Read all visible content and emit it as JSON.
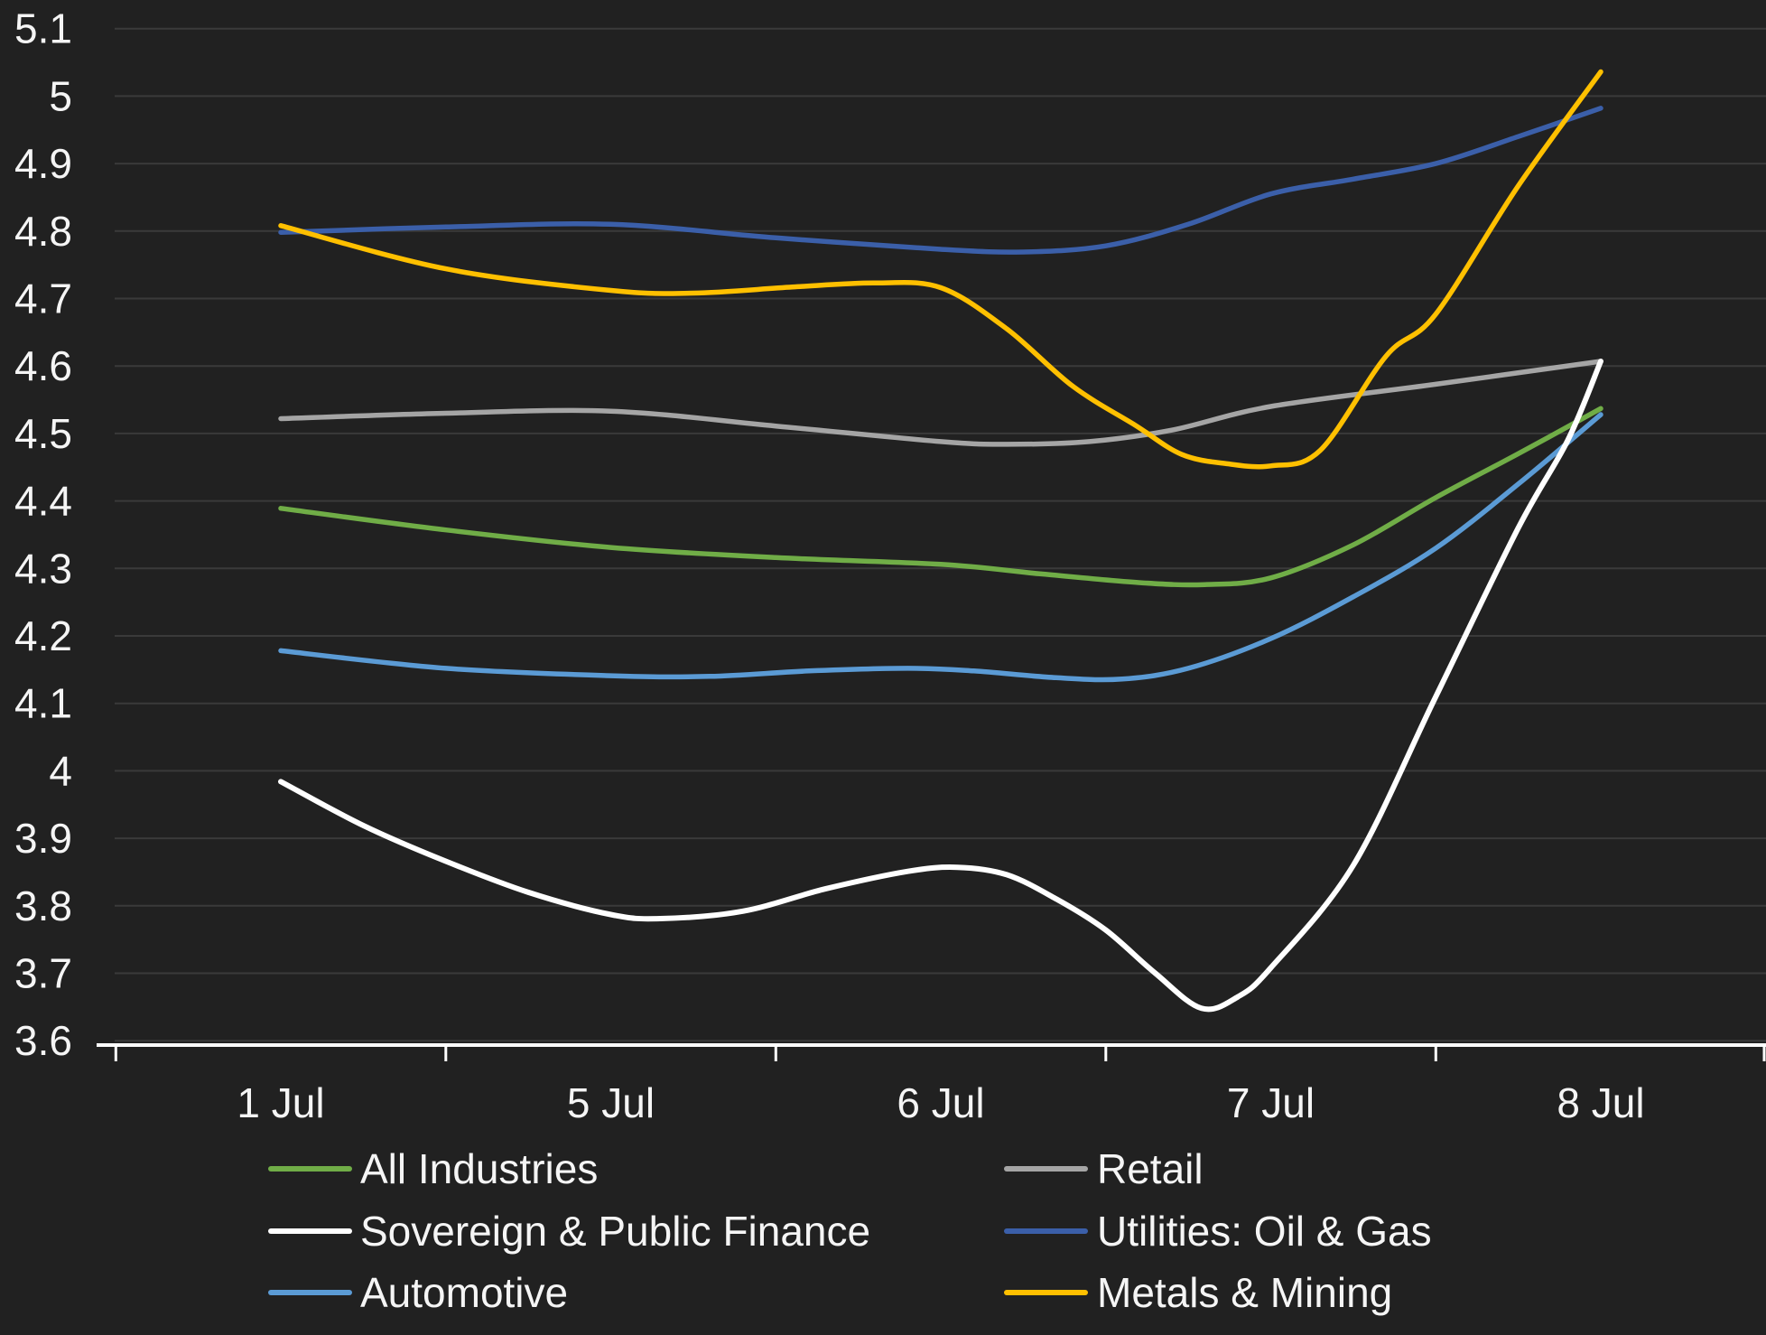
{
  "canvas": {
    "background": "#212121",
    "grid_color": "#3a3a3a",
    "axis_color": "#ffffff",
    "text_color": "#f5f5f5"
  },
  "chart_data": {
    "type": "line",
    "title": "",
    "xlabel": "",
    "ylabel": "",
    "categories": [
      "1 Jul",
      "5 Jul",
      "6 Jul",
      "7 Jul",
      "8 Jul"
    ],
    "ylim": [
      3.6,
      5.1
    ],
    "ytick_step": 0.1,
    "ytick_labels": [
      "5.1",
      "5",
      "4.9",
      "4.8",
      "4.7",
      "4.6",
      "4.5",
      "4.4",
      "4.3",
      "4.2",
      "4.1",
      "4",
      "3.9",
      "3.8",
      "3.7",
      "3.6"
    ],
    "grid": "horizontal",
    "legend_position": "bottom",
    "series": [
      {
        "name": "All Industries",
        "color": "#70ad47",
        "values": [
          4.39,
          4.33,
          4.31,
          4.29,
          4.54
        ],
        "shape_points": [
          [
            0,
            4.389
          ],
          [
            0.5,
            4.357
          ],
          [
            1,
            4.331
          ],
          [
            1.5,
            4.316
          ],
          [
            2,
            4.306
          ],
          [
            2.3,
            4.292
          ],
          [
            2.6,
            4.279
          ],
          [
            2.8,
            4.276
          ],
          [
            3,
            4.286
          ],
          [
            3.25,
            4.335
          ],
          [
            3.5,
            4.405
          ],
          [
            3.75,
            4.47
          ],
          [
            4,
            4.537
          ]
        ]
      },
      {
        "name": "Sovereign & Public Finance",
        "color": "#ffffff",
        "values": [
          3.98,
          3.79,
          3.86,
          3.71,
          4.61
        ],
        "shape_points": [
          [
            0,
            3.984
          ],
          [
            0.25,
            3.919
          ],
          [
            0.5,
            3.866
          ],
          [
            0.75,
            3.82
          ],
          [
            1,
            3.787
          ],
          [
            1.15,
            3.781
          ],
          [
            1.4,
            3.792
          ],
          [
            1.65,
            3.825
          ],
          [
            1.9,
            3.851
          ],
          [
            2.05,
            3.857
          ],
          [
            2.2,
            3.846
          ],
          [
            2.35,
            3.81
          ],
          [
            2.5,
            3.764
          ],
          [
            2.65,
            3.7
          ],
          [
            2.79,
            3.648
          ],
          [
            2.9,
            3.665
          ],
          [
            3,
            3.708
          ],
          [
            3.25,
            3.86
          ],
          [
            3.5,
            4.11
          ],
          [
            3.75,
            4.36
          ],
          [
            3.9,
            4.49
          ],
          [
            4,
            4.607
          ]
        ]
      },
      {
        "name": "Automotive",
        "color": "#5b9bd5",
        "values": [
          4.18,
          4.14,
          4.15,
          4.2,
          4.53
        ],
        "shape_points": [
          [
            0,
            4.178
          ],
          [
            0.5,
            4.152
          ],
          [
            1,
            4.141
          ],
          [
            1.3,
            4.14
          ],
          [
            1.6,
            4.148
          ],
          [
            1.9,
            4.152
          ],
          [
            2.1,
            4.148
          ],
          [
            2.35,
            4.138
          ],
          [
            2.55,
            4.136
          ],
          [
            2.75,
            4.152
          ],
          [
            3,
            4.196
          ],
          [
            3.25,
            4.258
          ],
          [
            3.5,
            4.33
          ],
          [
            3.75,
            4.425
          ],
          [
            4,
            4.528
          ]
        ]
      },
      {
        "name": "Retail",
        "color": "#a5a5a5",
        "values": [
          4.52,
          4.53,
          4.49,
          4.54,
          4.61
        ],
        "shape_points": [
          [
            0,
            4.522
          ],
          [
            0.5,
            4.53
          ],
          [
            1,
            4.533
          ],
          [
            1.5,
            4.511
          ],
          [
            2,
            4.488
          ],
          [
            2.2,
            4.484
          ],
          [
            2.45,
            4.488
          ],
          [
            2.7,
            4.505
          ],
          [
            3,
            4.54
          ],
          [
            3.5,
            4.573
          ],
          [
            4,
            4.607
          ]
        ]
      },
      {
        "name": "Utilities: Oil & Gas",
        "color": "#3b5fa9",
        "values": [
          4.8,
          4.81,
          4.77,
          4.86,
          4.98
        ],
        "shape_points": [
          [
            0,
            4.798
          ],
          [
            0.5,
            4.806
          ],
          [
            1,
            4.81
          ],
          [
            1.5,
            4.79
          ],
          [
            2,
            4.773
          ],
          [
            2.25,
            4.769
          ],
          [
            2.5,
            4.778
          ],
          [
            2.75,
            4.81
          ],
          [
            3,
            4.855
          ],
          [
            3.25,
            4.877
          ],
          [
            3.5,
            4.9
          ],
          [
            3.75,
            4.94
          ],
          [
            4,
            4.982
          ]
        ]
      },
      {
        "name": "Metals & Mining",
        "color": "#ffc000",
        "values": [
          4.81,
          4.71,
          4.72,
          4.45,
          5.04
        ],
        "shape_points": [
          [
            0,
            4.808
          ],
          [
            0.5,
            4.744
          ],
          [
            1,
            4.712
          ],
          [
            1.25,
            4.708
          ],
          [
            1.55,
            4.717
          ],
          [
            1.8,
            4.723
          ],
          [
            2,
            4.716
          ],
          [
            2.2,
            4.655
          ],
          [
            2.4,
            4.57
          ],
          [
            2.59,
            4.512
          ],
          [
            2.73,
            4.469
          ],
          [
            2.87,
            4.455
          ],
          [
            3,
            4.452
          ],
          [
            3.15,
            4.475
          ],
          [
            3.35,
            4.615
          ],
          [
            3.5,
            4.677
          ],
          [
            3.75,
            4.867
          ],
          [
            4,
            5.036
          ]
        ]
      }
    ],
    "draw_order": [
      3,
      0,
      2,
      1,
      4,
      5
    ],
    "legend_columns": [
      [
        0,
        1,
        2
      ],
      [
        3,
        4,
        5
      ]
    ]
  }
}
